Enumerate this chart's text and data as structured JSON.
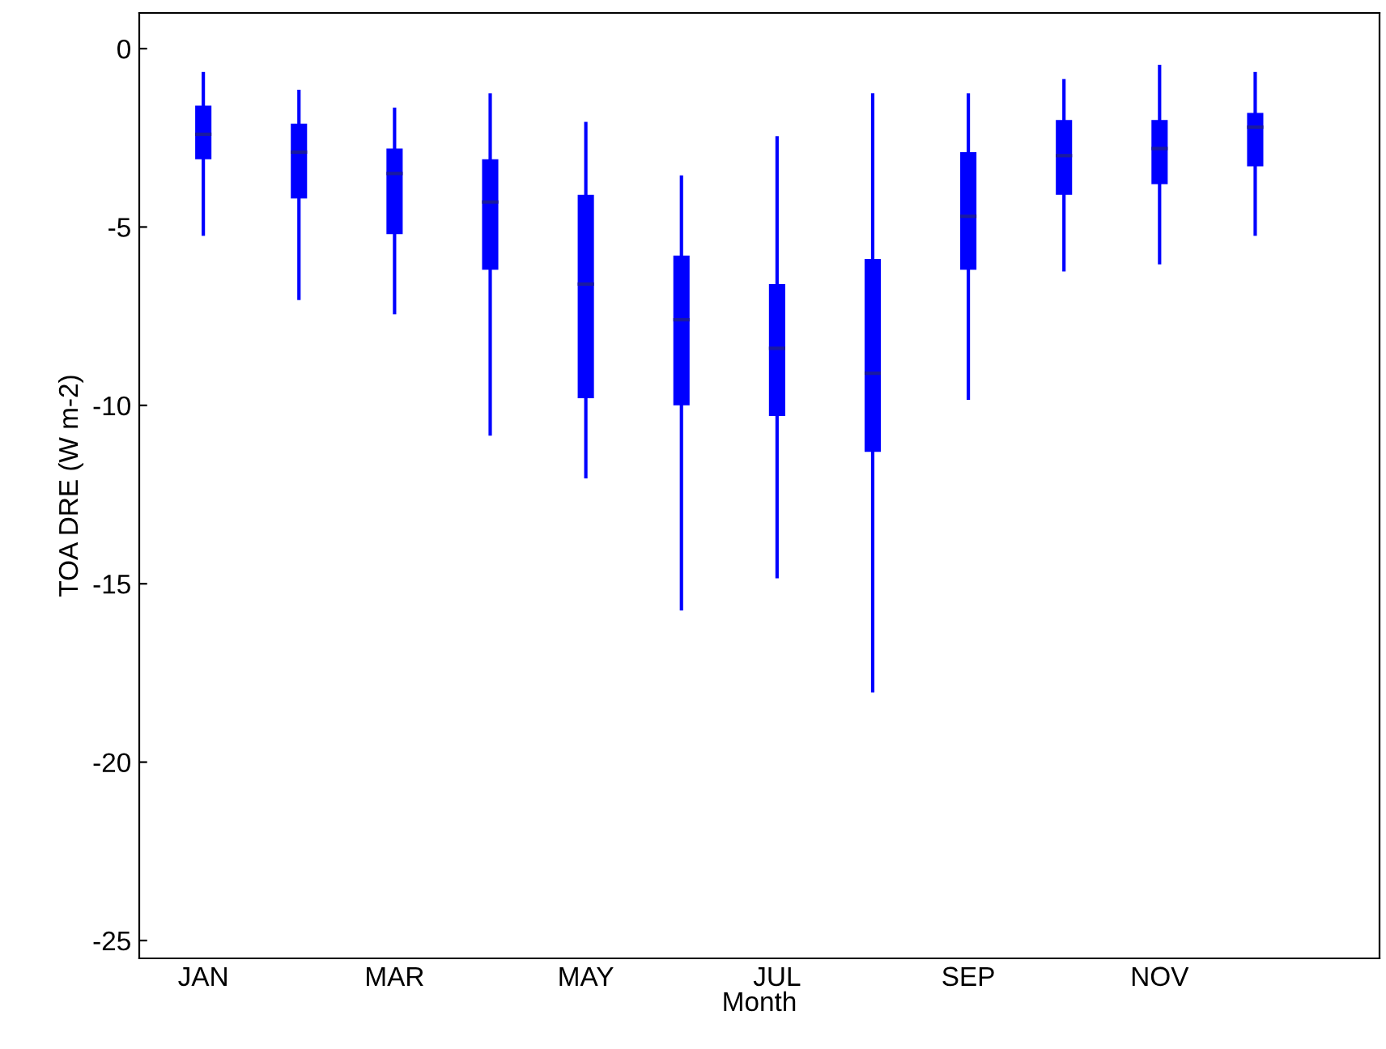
{
  "chart_data": {
    "type": "box",
    "xlabel": "Month",
    "ylabel": "TOA DRE (W m-2)",
    "categories": [
      "JAN",
      null,
      "MAR",
      null,
      "MAY",
      null,
      "JUL",
      null,
      "SEP",
      null,
      "NOV",
      null
    ],
    "color": "#0000ff",
    "boxes": [
      {
        "low": -5.2,
        "q1": -3.1,
        "median": -2.4,
        "q3": -1.6,
        "high": -0.7
      },
      {
        "low": -7.0,
        "q1": -4.2,
        "median": -2.9,
        "q3": -2.1,
        "high": -1.2
      },
      {
        "low": -7.4,
        "q1": -5.2,
        "median": -3.5,
        "q3": -2.8,
        "high": -1.7
      },
      {
        "low": -10.8,
        "q1": -6.2,
        "median": -4.3,
        "q3": -3.1,
        "high": -1.3
      },
      {
        "low": -12.0,
        "q1": -9.8,
        "median": -6.6,
        "q3": -4.1,
        "high": -2.1
      },
      {
        "low": -15.7,
        "q1": -10.0,
        "median": -7.6,
        "q3": -5.8,
        "high": -3.6
      },
      {
        "low": -14.8,
        "q1": -10.3,
        "median": -8.4,
        "q3": -6.6,
        "high": -2.5
      },
      {
        "low": -18.0,
        "q1": -11.3,
        "median": -9.1,
        "q3": -5.9,
        "high": -1.3
      },
      {
        "low": -9.8,
        "q1": -6.2,
        "median": -4.7,
        "q3": -2.9,
        "high": -1.3
      },
      {
        "low": -6.2,
        "q1": -4.1,
        "median": -3.0,
        "q3": -2.0,
        "high": -0.9
      },
      {
        "low": -6.0,
        "q1": -3.8,
        "median": -2.8,
        "q3": -2.0,
        "high": -0.5
      },
      {
        "low": -5.2,
        "q1": -3.3,
        "median": -2.2,
        "q3": -1.8,
        "high": -0.7
      }
    ],
    "ylim": [
      -25.5,
      1
    ],
    "yticks": [
      -25,
      -20,
      -15,
      -10,
      -5,
      0
    ],
    "grid": false
  }
}
